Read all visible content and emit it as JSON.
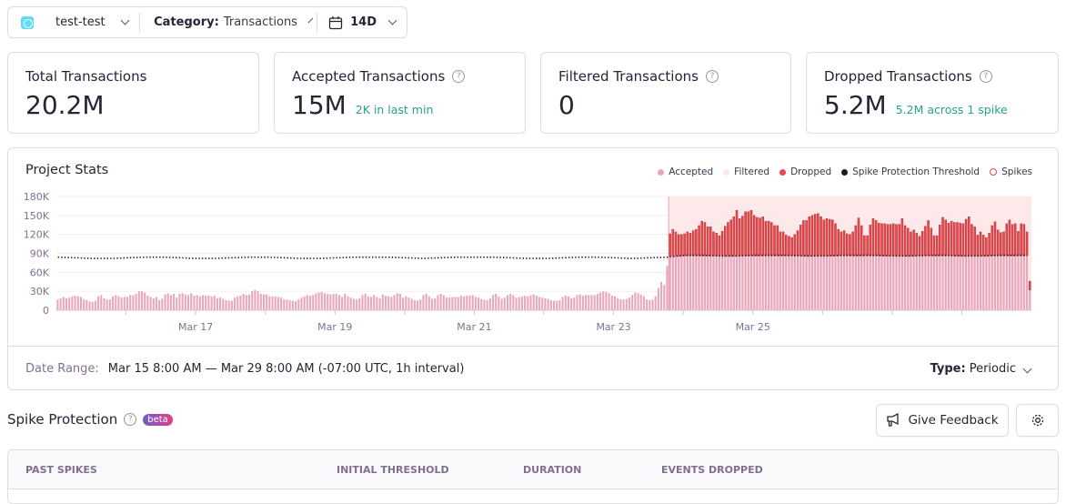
{
  "filters": {
    "project": "test-test",
    "category_label": "Category:",
    "category_value": "Transactions",
    "period": "14D"
  },
  "cards": [
    {
      "title": "Total Transactions",
      "value": "20.2M",
      "sub": "",
      "help": false
    },
    {
      "title": "Accepted Transactions",
      "value": "15M",
      "sub": "2K in last min",
      "help": true
    },
    {
      "title": "Filtered Transactions",
      "value": "0",
      "sub": "",
      "help": true
    },
    {
      "title": "Dropped Transactions",
      "value": "5.2M",
      "sub": "5.2M across 1 spike",
      "help": true
    }
  ],
  "stats": {
    "title": "Project Stats",
    "date_range_label": "Date Range:",
    "date_range_value": "Mar 15 8:00 AM — Mar 29 8:00 AM (-07:00 UTC, 1h interval)",
    "type_label": "Type:",
    "type_value": "Periodic"
  },
  "colors": {
    "accepted": "#e9a7bd",
    "filtered": "#fbe6ec",
    "dropped": "#e5484d",
    "threshold": "#1f1a24",
    "spike_band": "#fde9e9",
    "positive": "#2ba185"
  },
  "chart_data": {
    "type": "bar",
    "stacked": true,
    "interval": "1h",
    "title": "Project Stats",
    "legend": [
      "Accepted",
      "Filtered",
      "Dropped",
      "Spike Protection Threshold",
      "Spikes"
    ],
    "legend_position": "top-right",
    "ylim": [
      0,
      180000
    ],
    "y_ticks": [
      "0",
      "30K",
      "60K",
      "90K",
      "120K",
      "150K",
      "180K"
    ],
    "x_tick_labels": [
      {
        "label": "Mar 17",
        "hour_index": 48
      },
      {
        "label": "Mar 19",
        "hour_index": 96
      },
      {
        "label": "Mar 21",
        "hour_index": 144
      },
      {
        "label": "Mar 23",
        "hour_index": 192
      },
      {
        "label": "Mar 25",
        "hour_index": 240
      }
    ],
    "grid": true,
    "units": "K",
    "accepted": [
      17,
      19,
      21,
      19,
      20,
      22,
      23,
      22,
      21,
      17,
      16,
      14,
      13,
      15,
      22,
      24,
      19,
      17,
      17,
      22,
      24,
      22,
      20,
      21,
      21,
      24,
      24,
      26,
      30,
      30,
      28,
      23,
      21,
      19,
      21,
      16,
      18,
      25,
      27,
      24,
      26,
      20,
      26,
      27,
      25,
      24,
      27,
      23,
      24,
      22,
      24,
      23,
      23,
      22,
      23,
      19,
      20,
      18,
      16,
      15,
      15,
      20,
      22,
      23,
      26,
      24,
      25,
      30,
      32,
      30,
      26,
      25,
      25,
      22,
      22,
      22,
      21,
      20,
      17,
      17,
      16,
      15,
      14,
      17,
      20,
      22,
      24,
      23,
      24,
      27,
      28,
      29,
      27,
      26,
      25,
      26,
      26,
      24,
      21,
      26,
      22,
      20,
      18,
      17,
      19,
      24,
      26,
      22,
      21,
      24,
      21,
      19,
      25,
      23,
      22,
      21,
      24,
      27,
      26,
      20,
      22,
      20,
      18,
      16,
      15,
      17,
      24,
      26,
      22,
      18,
      19,
      24,
      26,
      24,
      20,
      20,
      21,
      21,
      21,
      23,
      22,
      23,
      23,
      24,
      21,
      20,
      18,
      17,
      16,
      19,
      24,
      26,
      22,
      18,
      20,
      24,
      26,
      24,
      20,
      21,
      22,
      23,
      22,
      24,
      25,
      23,
      21,
      20,
      19,
      18,
      16,
      15,
      15,
      16,
      21,
      23,
      22,
      19,
      20,
      24,
      25,
      23,
      24,
      24,
      24,
      24,
      26,
      28,
      30,
      29,
      27,
      23,
      22,
      19,
      17,
      17,
      18,
      20,
      24,
      28,
      27,
      25,
      22,
      17,
      16,
      17,
      22,
      35,
      45,
      40,
      70,
      86,
      86,
      86,
      86,
      86,
      86,
      86,
      86,
      86,
      86,
      86,
      86,
      86,
      86,
      86,
      86,
      86,
      86,
      86,
      86,
      86,
      86,
      86,
      86,
      86,
      86,
      86,
      86,
      86,
      86,
      86,
      86,
      86,
      86,
      86,
      86,
      86,
      86,
      86,
      86,
      86,
      86,
      86,
      86,
      86,
      86,
      86,
      86,
      86,
      86,
      86,
      86,
      86,
      86,
      86,
      86,
      86,
      86,
      86,
      86,
      86,
      86,
      86,
      86,
      86,
      86,
      86,
      86,
      86,
      86,
      86,
      86,
      86,
      86,
      86,
      86,
      86,
      86,
      86,
      86,
      86,
      86,
      86,
      86,
      86,
      86,
      86,
      86,
      86,
      86,
      86,
      86,
      86,
      86,
      86,
      86,
      86,
      86,
      86,
      86,
      86,
      86,
      86,
      86,
      86,
      86,
      86,
      86,
      86,
      86,
      86,
      86,
      86,
      86,
      86,
      86,
      86,
      86,
      86,
      86,
      86,
      86,
      86,
      86,
      32
    ],
    "filtered": [],
    "dropped": {
      "start_hour_index": 211,
      "values": [
        35,
        42,
        38,
        34,
        34,
        35,
        38,
        36,
        40,
        42,
        48,
        55,
        53,
        46,
        46,
        38,
        36,
        32,
        39,
        47,
        53,
        57,
        62,
        72,
        59,
        63,
        70,
        70,
        72,
        64,
        61,
        60,
        62,
        55,
        55,
        53,
        48,
        48,
        38,
        38,
        33,
        31,
        29,
        34,
        40,
        49,
        56,
        56,
        62,
        64,
        66,
        67,
        62,
        57,
        59,
        58,
        57,
        51,
        42,
        38,
        40,
        35,
        34,
        38,
        48,
        60,
        48,
        32,
        32,
        49,
        59,
        56,
        52,
        51,
        51,
        50,
        50,
        51,
        50,
        50,
        59,
        48,
        44,
        38,
        41,
        36,
        31,
        39,
        47,
        56,
        44,
        32,
        32,
        49,
        61,
        57,
        52,
        55,
        53,
        53,
        52,
        51,
        58,
        62,
        50,
        46,
        33,
        38,
        33,
        29,
        36,
        48,
        54,
        41,
        37,
        38,
        51,
        57,
        50,
        51,
        39,
        51,
        50,
        38,
        14
      ]
    },
    "threshold_every_6h": [
      84,
      83,
      82,
      82,
      83,
      84,
      84,
      83,
      82,
      82,
      83,
      84,
      84,
      83,
      82,
      82,
      83,
      84,
      84,
      84,
      83,
      82,
      83,
      84,
      84,
      84,
      83,
      82,
      82,
      83,
      84,
      84,
      83,
      82,
      83,
      84,
      87,
      87,
      86,
      86,
      87,
      87,
      87,
      86,
      86,
      87,
      87,
      87,
      86,
      86,
      87,
      87,
      86,
      86,
      87,
      87
    ],
    "spikes": [
      {
        "start_hour_index": 211,
        "end_hour_index": 335
      }
    ]
  },
  "spike_protection": {
    "title": "Spike Protection",
    "badge": "beta",
    "feedback_label": "Give Feedback",
    "columns": [
      "PAST SPIKES",
      "INITIAL THRESHOLD",
      "DURATION",
      "EVENTS DROPPED"
    ]
  }
}
